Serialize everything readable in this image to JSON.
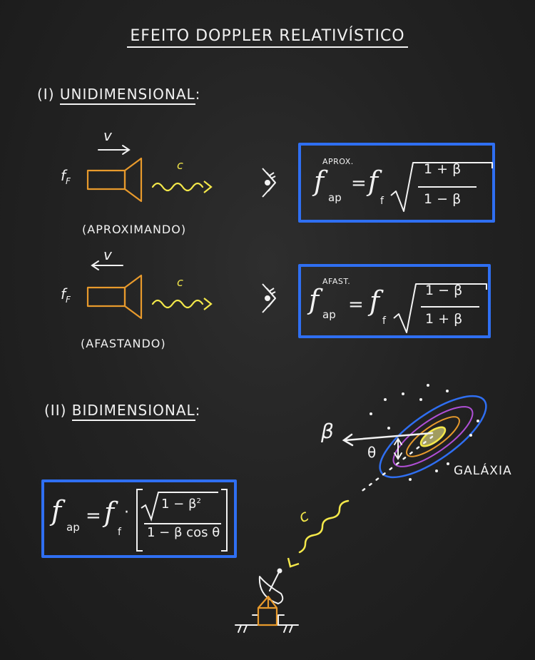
{
  "title": "EFEITO DOPPLER RELATIVÍSTICO",
  "section1": {
    "numeral": "(I)",
    "label": "UNIDIMENSIONAL",
    "colon": ":"
  },
  "row1": {
    "source_label": "f",
    "source_sub": "F",
    "velocity": "v",
    "wave_label": "c",
    "caption": "(APROXIMANDO)",
    "formula": {
      "tag": "APROX.",
      "lhs": "f",
      "lhs_sub": "ap",
      "eq": "=",
      "rhs": "f",
      "rhs_sub": "f",
      "num": "1 + β",
      "den": "1 − β"
    }
  },
  "row2": {
    "source_label": "f",
    "source_sub": "F",
    "velocity": "v",
    "wave_label": "c",
    "caption": "(AFASTANDO)",
    "formula": {
      "tag": "AFAST.",
      "lhs": "f",
      "lhs_sub": "ap",
      "eq": "=",
      "rhs": "f",
      "rhs_sub": "f",
      "num": "1 − β",
      "den": "1 + β"
    }
  },
  "section2": {
    "numeral": "(II)",
    "label": "BIDIMENSIONAL",
    "colon": ":"
  },
  "formula2": {
    "lhs": "f",
    "lhs_sub": "ap",
    "eq": "=",
    "rhs": "f",
    "rhs_sub": "f",
    "dot": "·",
    "num": "1 − β",
    "num_sup": "2",
    "den": "1 − β cos θ"
  },
  "galaxy": {
    "label": "GALÁXIA",
    "beta": "β",
    "theta": "θ",
    "wave_label": "c"
  },
  "colors": {
    "blue": "#2f6ff2",
    "orange": "#e89a2c",
    "yellow": "#f4e84a",
    "chalk": "#f2f2f2",
    "purple": "#b04fd6"
  }
}
